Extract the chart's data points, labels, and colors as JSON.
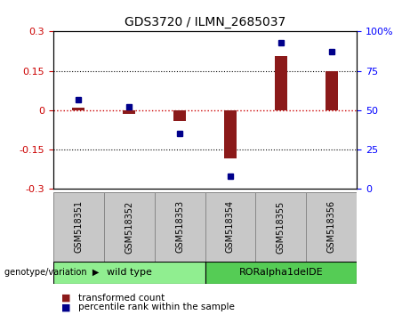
{
  "title": "GDS3720 / ILMN_2685037",
  "samples": [
    "GSM518351",
    "GSM518352",
    "GSM518353",
    "GSM518354",
    "GSM518355",
    "GSM518356"
  ],
  "red_bars": [
    0.01,
    -0.013,
    -0.042,
    -0.185,
    0.205,
    0.15
  ],
  "blue_dots": [
    57,
    52,
    35,
    8,
    93,
    87
  ],
  "ylim_left": [
    -0.3,
    0.3
  ],
  "ylim_right": [
    0,
    100
  ],
  "yticks_left": [
    -0.3,
    -0.15,
    0,
    0.15,
    0.3
  ],
  "yticks_right": [
    0,
    25,
    50,
    75,
    100
  ],
  "ytick_labels_right": [
    "0",
    "25",
    "50",
    "75",
    "100%"
  ],
  "ytick_labels_left": [
    "-0.3",
    "-0.15",
    "0",
    "0.15",
    "0.3"
  ],
  "hlines": [
    0.15,
    -0.15
  ],
  "red_color": "#8B1A1A",
  "blue_color": "#00008B",
  "zero_line_color": "#CC0000",
  "wt_color": "#90EE90",
  "ror_color": "#55CC55",
  "sample_box_color": "#C8C8C8",
  "legend_red": "transformed count",
  "legend_blue": "percentile rank within the sample",
  "genotype_label": "genotype/variation",
  "bar_width": 0.25,
  "title_fontsize": 10,
  "tick_fontsize": 8,
  "sample_fontsize": 7,
  "legend_fontsize": 7.5,
  "geno_fontsize": 8
}
